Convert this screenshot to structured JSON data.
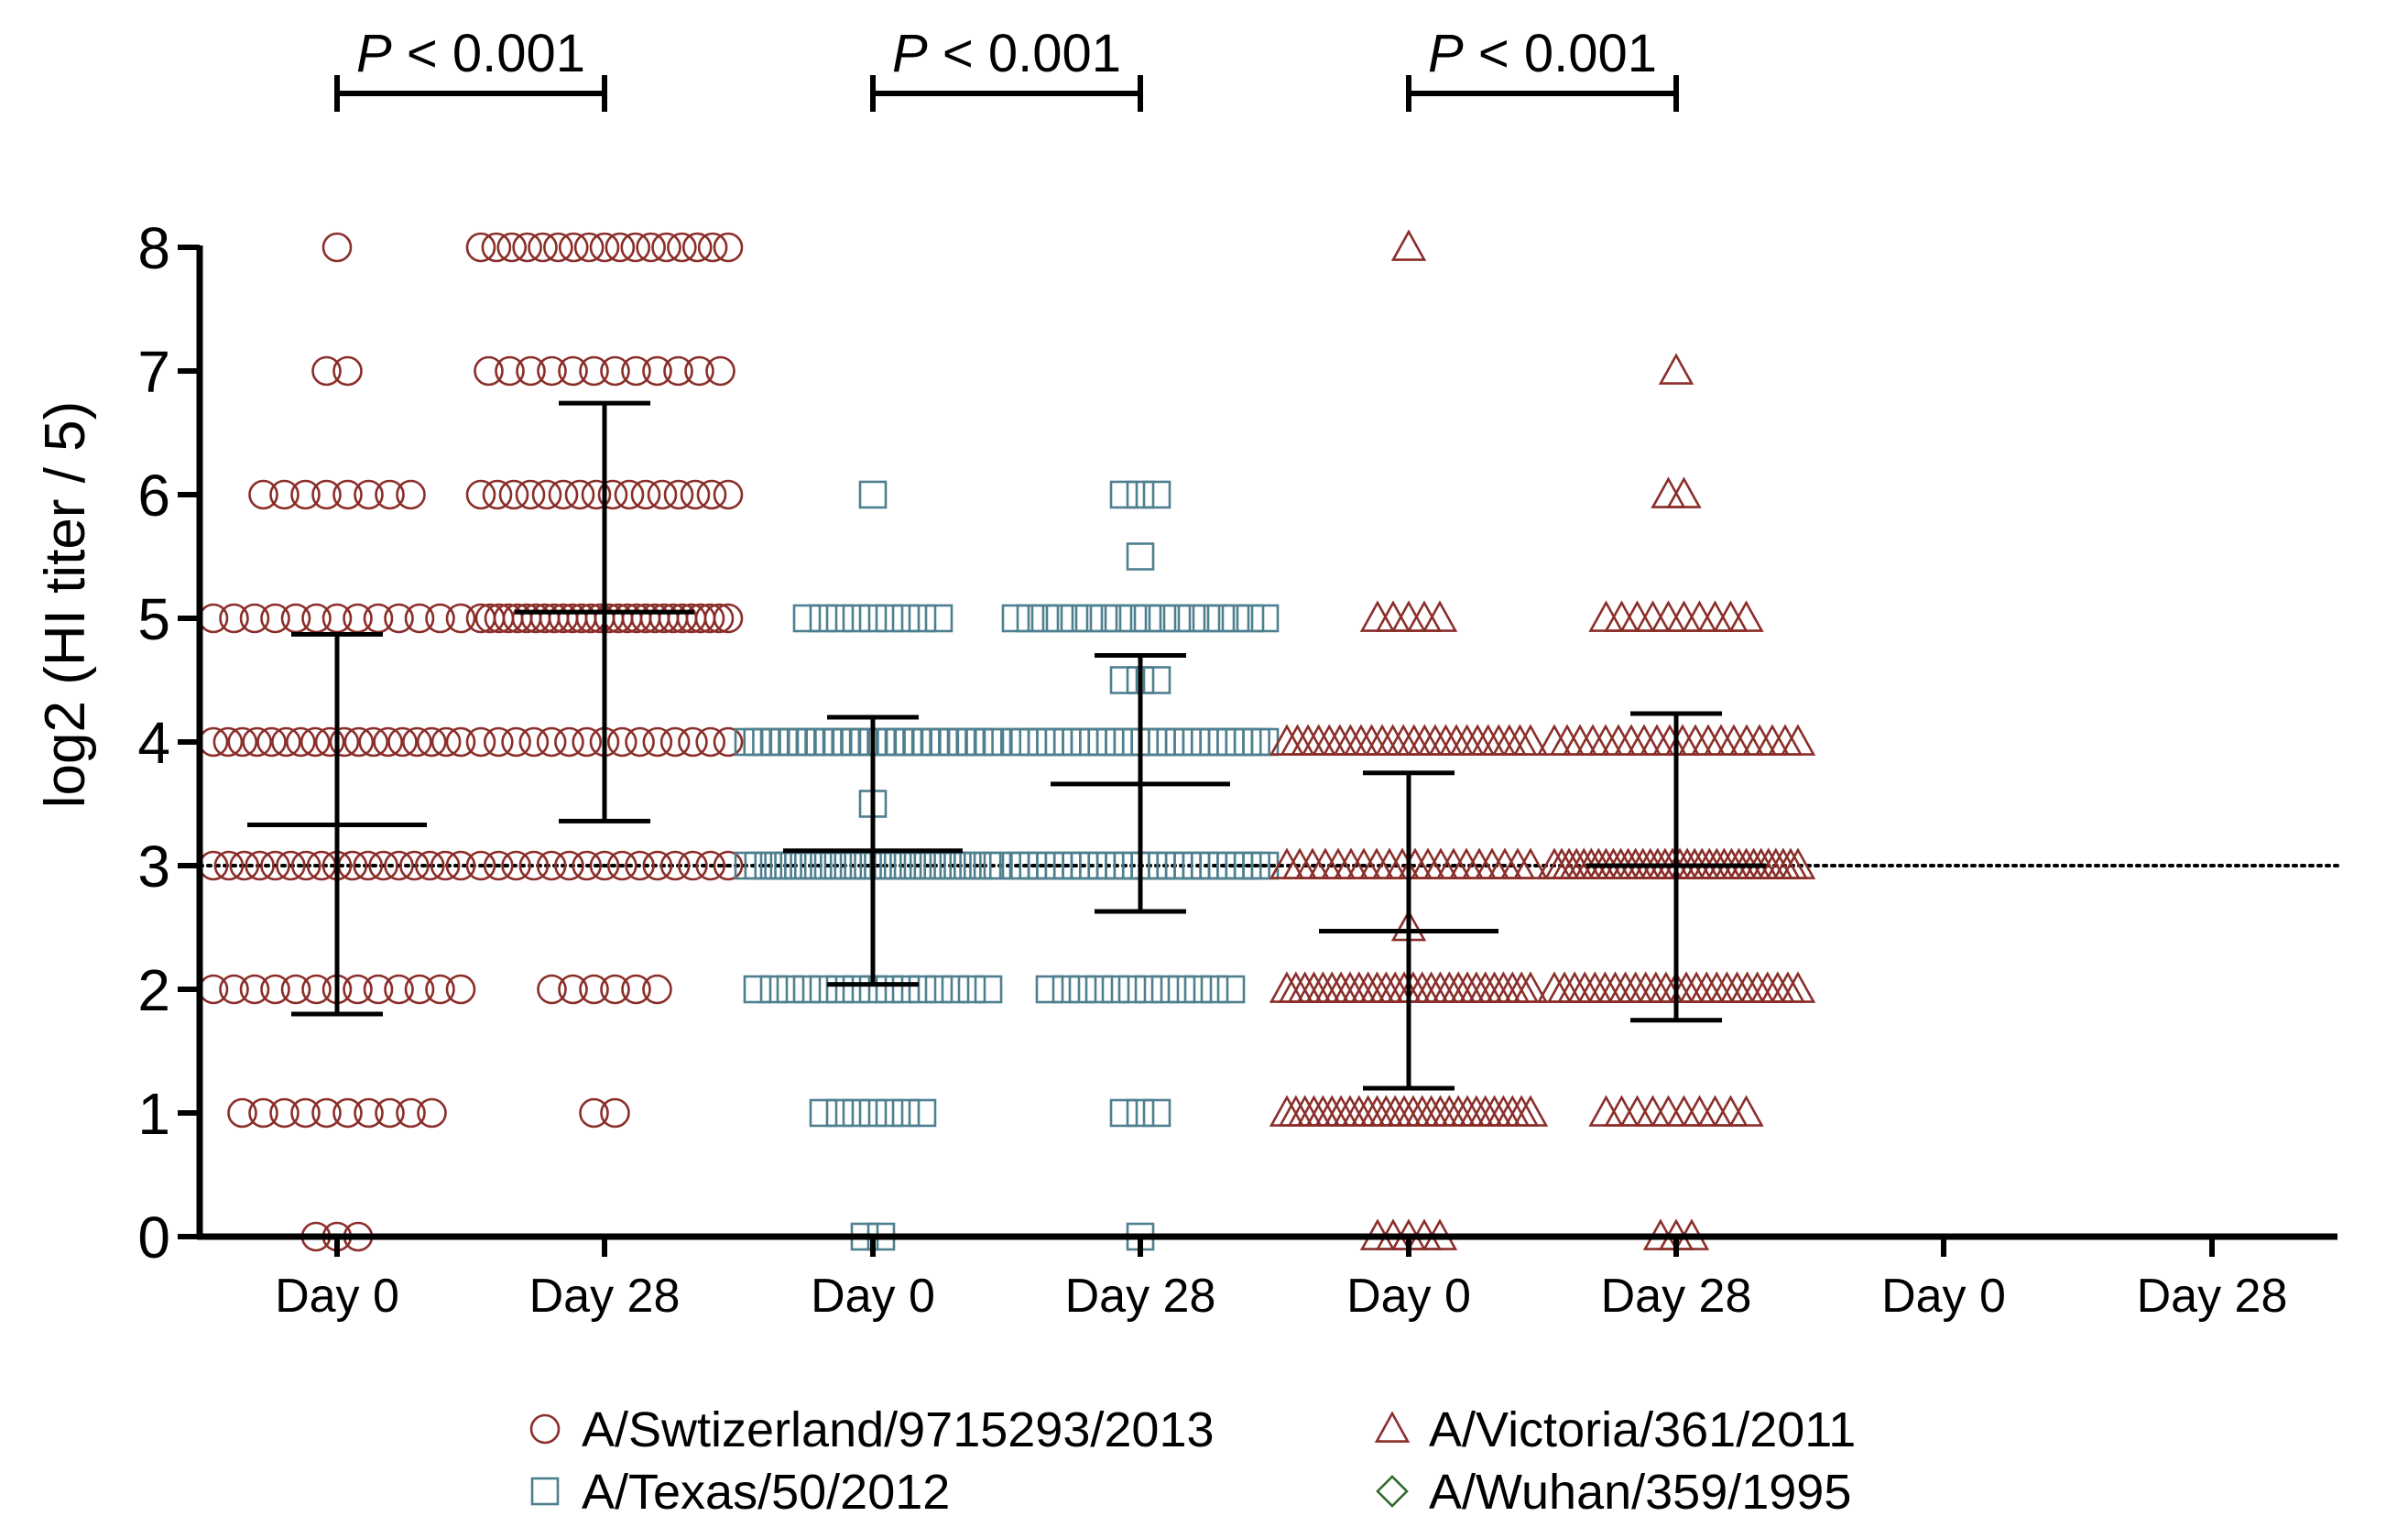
{
  "chart_data": {
    "type": "scatter",
    "ylabel": "log2 (HI titer / 5)",
    "ylim": [
      0,
      8
    ],
    "yticks": [
      "0",
      "1",
      "2",
      "3",
      "4",
      "5",
      "6",
      "7",
      "8"
    ],
    "categories": [
      "Day 0",
      "Day 28",
      "Day 0",
      "Day 28",
      "Day 0",
      "Day 28",
      "Day 0",
      "Day 28"
    ],
    "reference_line": {
      "y": 3,
      "style": "dotted"
    },
    "grid": false,
    "legend_position": "bottom",
    "colors": {
      "switzerland": "#8B2E2A",
      "texas": "#4E7F8F",
      "victoria": "#8B2E2A",
      "wuhan": "#2F6B2F",
      "stats": "#000000"
    },
    "series": [
      {
        "name": "A/Swtizerland/9715293/2013",
        "marker": "circle",
        "color": "#8B2E2A",
        "groups": [
          {
            "category_index": 0,
            "counts": {
              "0": 3,
              "1": 10,
              "2": 13,
              "3": 17,
              "4": 18,
              "5": 13,
              "6": 8,
              "7": 2,
              "8": 1
            },
            "mean": 3.33,
            "sd_low": 1.8,
            "sd_high": 4.87
          },
          {
            "category_index": 1,
            "counts": {
              "1": 2,
              "2": 6,
              "3": 15,
              "4": 15,
              "5": 28,
              "6": 16,
              "7": 12,
              "8": 17
            },
            "mean": 5.05,
            "sd_low": 3.36,
            "sd_high": 6.74
          }
        ]
      },
      {
        "name": "A/Texas/50/2012",
        "marker": "square",
        "color": "#4E7F8F",
        "groups": [
          {
            "category_index": 2,
            "counts": {
              "0": 2,
              "1": 7,
              "2": 15,
              "3": 26,
              "3.5": 1,
              "4": 29,
              "5": 9,
              "6": 1
            },
            "mean": 3.12,
            "sd_low": 2.04,
            "sd_high": 4.2
          },
          {
            "category_index": 3,
            "counts": {
              "0": 1,
              "1": 3,
              "2": 12,
              "3": 30,
              "4": 30,
              "4.5": 3,
              "5": 18,
              "5.5": 1,
              "6": 3
            },
            "mean": 3.66,
            "sd_low": 2.63,
            "sd_high": 4.7
          }
        ]
      },
      {
        "name": "A/Victoria/361/2011",
        "marker": "triangle",
        "color": "#8B2E2A",
        "groups": [
          {
            "category_index": 4,
            "counts": {
              "0": 5,
              "1": 28,
              "2": 28,
              "2.5": 1,
              "3": 20,
              "4": 24,
              "5": 5,
              "8": 1
            },
            "mean": 2.47,
            "sd_low": 1.2,
            "sd_high": 3.75
          },
          {
            "category_index": 5,
            "counts": {
              "0": 3,
              "1": 10,
              "2": 25,
              "3": 34,
              "4": 20,
              "5": 10,
              "6": 2,
              "7": 1
            },
            "mean": 3.0,
            "sd_low": 1.75,
            "sd_high": 4.23
          }
        ]
      },
      {
        "name": "A/Wuhan/359/1995",
        "marker": "diamond",
        "color": "#2F6B2F",
        "groups": []
      }
    ],
    "annotations": [
      {
        "text_italic": "P",
        "text": " < 0.001",
        "from_index": 0,
        "to_index": 1
      },
      {
        "text_italic": "P",
        "text": " < 0.001",
        "from_index": 2,
        "to_index": 3
      },
      {
        "text_italic": "P",
        "text": " < 0.001",
        "from_index": 4,
        "to_index": 5
      }
    ]
  }
}
